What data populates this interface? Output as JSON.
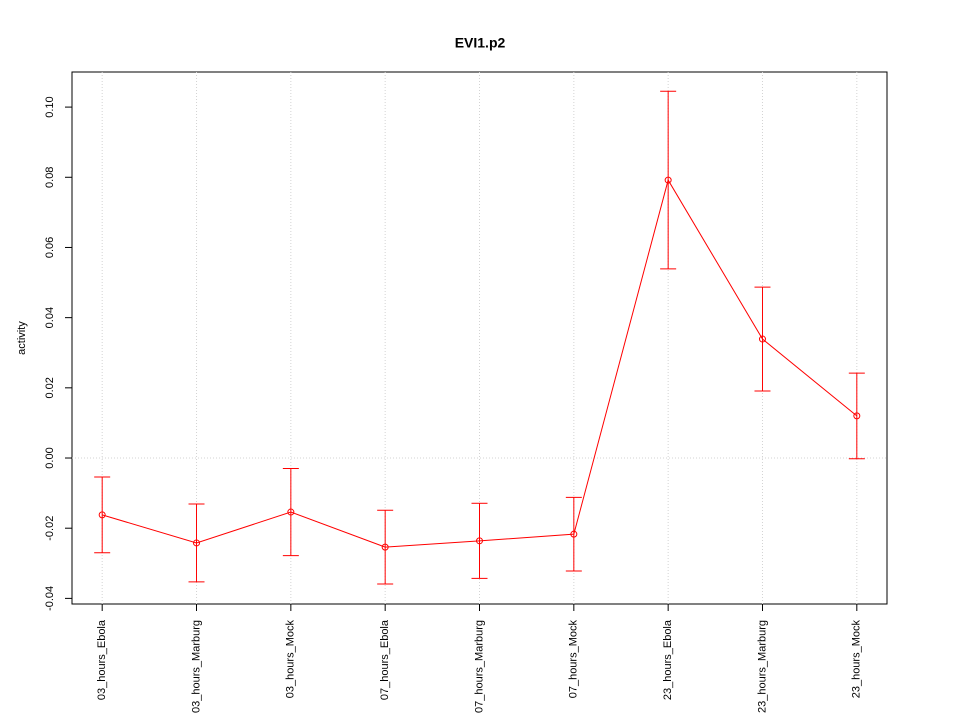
{
  "chart_data": {
    "type": "line",
    "title": "EVI1.p2",
    "y_label": "activity",
    "categories": [
      "03_hours_Ebola",
      "03_hours_Marburg",
      "03_hours_Mock",
      "07_hours_Ebola",
      "07_hours_Marburg",
      "07_hours_Mock",
      "23_hours_Ebola",
      "23_hours_Marburg",
      "23_hours_Mock"
    ],
    "series": [
      {
        "color": "#ff0000",
        "values": [
          -0.0162,
          -0.0242,
          -0.0154,
          -0.0254,
          -0.0236,
          -0.0217,
          0.0792,
          0.0339,
          0.012
        ],
        "errors": [
          0.0108,
          0.0111,
          0.0124,
          0.0105,
          0.0107,
          0.0105,
          0.0253,
          0.0148,
          0.0122
        ]
      }
    ],
    "ylim": [
      -0.0416,
      0.11
    ],
    "yticks": [
      -0.04,
      -0.02,
      {
        "value": 0,
        "label": "0.00"
      },
      0.02,
      0.04,
      0.06,
      0.08,
      {
        "value": 0.1,
        "label": "0.10"
      }
    ],
    "grid": "x",
    "reference_line": {
      "value": 0,
      "label": "0.00"
    }
  }
}
